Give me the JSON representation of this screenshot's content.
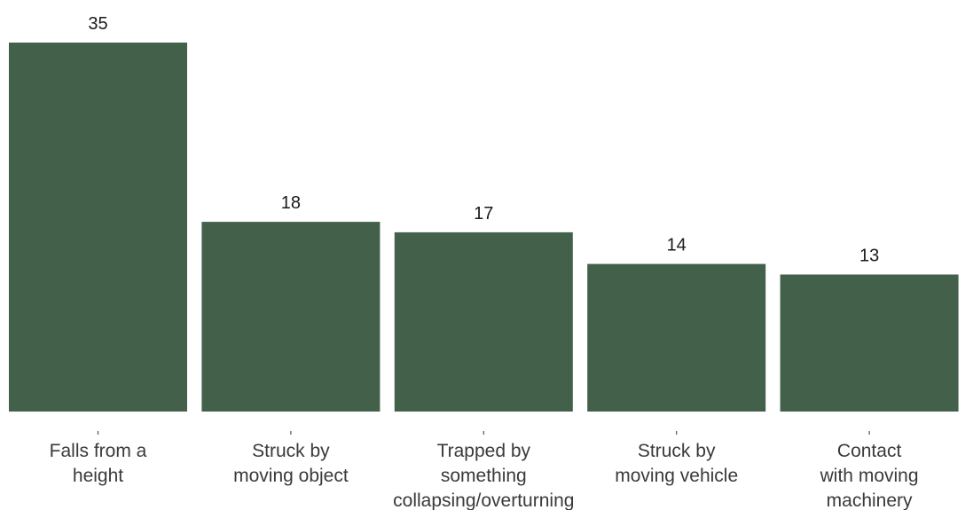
{
  "chart_data": {
    "type": "bar",
    "categories": [
      [
        "Falls from a",
        "height"
      ],
      [
        "Struck by",
        "moving object"
      ],
      [
        "Trapped by",
        "something",
        "collapsing/overturning"
      ],
      [
        "Struck by",
        "moving vehicle"
      ],
      [
        "Contact",
        "with moving",
        "machinery"
      ]
    ],
    "values": [
      35,
      18,
      17,
      14,
      13
    ],
    "ylim": [
      0,
      35
    ],
    "grid": false,
    "bar_color": "#42604a",
    "title": "",
    "xlabel": "",
    "ylabel": ""
  }
}
